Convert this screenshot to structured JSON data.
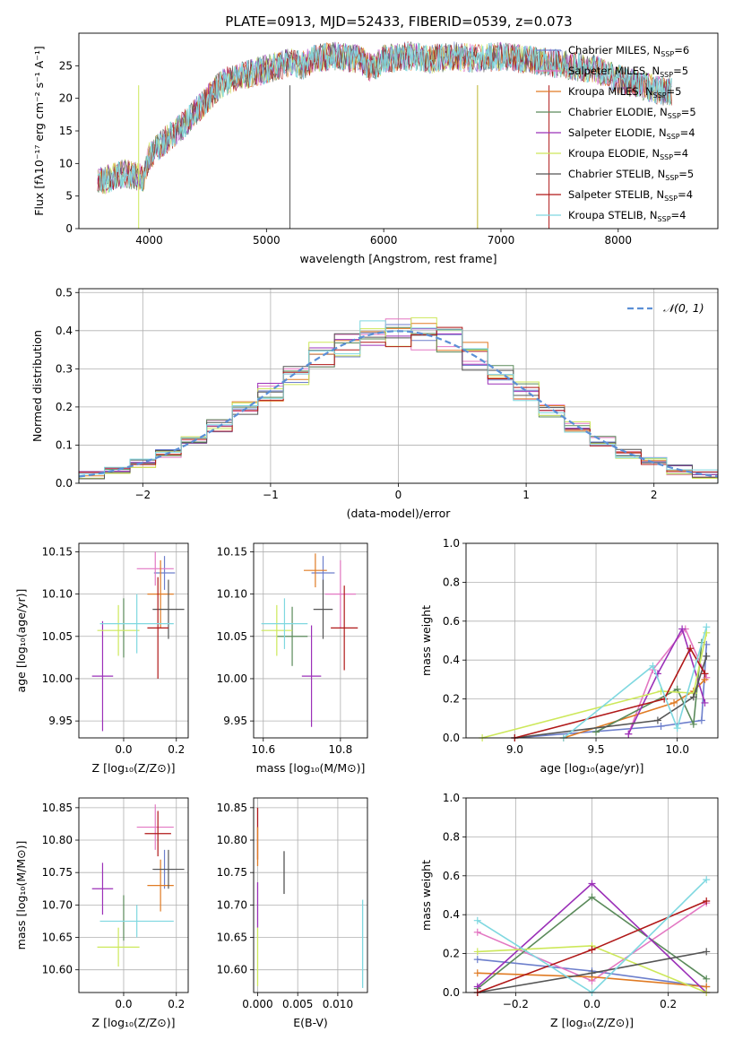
{
  "chart_data": [
    {
      "type": "line",
      "panel": "spectrum",
      "title": "PLATE=0913, MJD=52433, FIBERID=0539, z=0.073",
      "xlabel": "wavelength [Angstrom, rest frame]",
      "ylabel": "Flux [fλ10⁻¹⁷ erg cm⁻² s⁻¹ A⁻¹]",
      "xlim": [
        3400,
        8850
      ],
      "ylim": [
        0,
        30
      ],
      "xticks": [
        4000,
        5000,
        6000,
        7000,
        8000
      ],
      "yticks": [
        0,
        5,
        10,
        15,
        20,
        25
      ],
      "grid": false,
      "legend_position": "top-right",
      "continuum": {
        "x": [
          3550,
          3700,
          3800,
          3900,
          3950,
          4000,
          4100,
          4200,
          4300,
          4400,
          4500,
          4600,
          4700,
          4800,
          4900,
          5000,
          5100,
          5200,
          5300,
          5400,
          5600,
          5800,
          5900,
          6000,
          6200,
          6400,
          6600,
          6800,
          7000,
          7200,
          7400,
          7600,
          7800,
          8000,
          8200,
          8400
        ],
        "y": [
          7,
          8,
          8.5,
          8,
          7.5,
          11,
          13,
          14.5,
          16,
          18,
          20,
          22,
          23,
          23.5,
          24,
          24.5,
          25,
          25.5,
          25,
          26,
          26.5,
          26,
          24.5,
          26,
          26.5,
          26,
          26.5,
          26,
          26.5,
          26,
          25.5,
          25,
          24.5,
          23,
          22,
          21
        ]
      },
      "series": [
        {
          "name": "Chabrier MILES, N_SSP=6",
          "label_prefix": "Chabrier MILES, N",
          "label_sub": "SSP",
          "label_suffix": "=6",
          "color": "#6d7fcc"
        },
        {
          "name": "Salpeter MILES, N_SSP=5",
          "label_prefix": "Salpeter MILES, N",
          "label_sub": "SSP",
          "label_suffix": "=5",
          "color": "#e377c2"
        },
        {
          "name": "Kroupa MILES, N_SSP=5",
          "label_prefix": "Kroupa MILES, N",
          "label_sub": "SSP",
          "label_suffix": "=5",
          "color": "#e07b24"
        },
        {
          "name": "Chabrier ELODIE, N_SSP=5",
          "label_prefix": "Chabrier ELODIE, N",
          "label_sub": "SSP",
          "label_suffix": "=5",
          "color": "#5a8a5a"
        },
        {
          "name": "Salpeter ELODIE, N_SSP=4",
          "label_prefix": "Salpeter ELODIE, N",
          "label_sub": "SSP",
          "label_suffix": "=4",
          "color": "#9b30b8"
        },
        {
          "name": "Kroupa ELODIE, N_SSP=4",
          "label_prefix": "Kroupa ELODIE, N",
          "label_sub": "SSP",
          "label_suffix": "=4",
          "color": "#cde85a"
        },
        {
          "name": "Chabrier STELIB, N_SSP=5",
          "label_prefix": "Chabrier STELIB, N",
          "label_sub": "SSP",
          "label_suffix": "=5",
          "color": "#555555"
        },
        {
          "name": "Salpeter STELIB, N_SSP=4",
          "label_prefix": "Salpeter STELIB, N",
          "label_sub": "SSP",
          "label_suffix": "=4",
          "color": "#b01818"
        },
        {
          "name": "Kroupa STELIB, N_SSP=4",
          "label_prefix": "Kroupa STELIB, N",
          "label_sub": "SSP",
          "label_suffix": "=4",
          "color": "#7fd8e0"
        }
      ]
    },
    {
      "type": "line",
      "panel": "residuals",
      "xlabel": "(data-model)/error",
      "ylabel": "Normed distribution",
      "xlim": [
        -2.5,
        2.5
      ],
      "ylim": [
        0,
        0.51
      ],
      "xticks": [
        -2,
        -1,
        0,
        1,
        2
      ],
      "yticks": [
        0.0,
        0.1,
        0.2,
        0.3,
        0.4,
        0.5
      ],
      "grid": true,
      "legend_position": "top-right",
      "reference_curve": {
        "name": "N(0,1)",
        "label": "𝒩(0, 1)",
        "mean": 0,
        "sigma": 1,
        "color": "#5b8fd6",
        "style": "dashed"
      },
      "histogram_bins": [
        -2.5,
        -2.3,
        -2.1,
        -1.9,
        -1.7,
        -1.5,
        -1.3,
        -1.1,
        -0.9,
        -0.7,
        -0.5,
        -0.3,
        -0.1,
        0.1,
        0.3,
        0.5,
        0.7,
        0.9,
        1.1,
        1.3,
        1.5,
        1.7,
        1.9,
        2.1,
        2.3,
        2.5
      ]
    },
    {
      "type": "scatter",
      "panel": "age-vs-Z",
      "xlabel": "Z [log₁₀(Z/Z⊙)]",
      "ylabel": "age  [log₁₀(age/yr)]",
      "xlim": [
        -0.17,
        0.245
      ],
      "ylim": [
        9.93,
        10.16
      ],
      "xticks": [
        0.0,
        0.2
      ],
      "yticks": [
        9.95,
        10.0,
        10.05,
        10.1,
        10.15
      ],
      "grid": true,
      "points": [
        {
          "x": 0.155,
          "y": 10.125,
          "xerr": 0.04,
          "yerr": 0.02
        },
        {
          "x": 0.12,
          "y": 10.13,
          "xerr": 0.07,
          "yerr": 0.02
        },
        {
          "x": 0.14,
          "y": 10.1,
          "xerr": 0.05,
          "yerr": 0.04
        },
        {
          "x": 0.0,
          "y": 10.06,
          "xerr": 0.0,
          "yerr": 0.035
        },
        {
          "x": -0.08,
          "y": 10.003,
          "xerr": 0.04,
          "yerr": 0.065
        },
        {
          "x": -0.02,
          "y": 10.057,
          "xerr": 0.08,
          "yerr": 0.03
        },
        {
          "x": 0.17,
          "y": 10.082,
          "xerr": 0.06,
          "yerr": 0.035
        },
        {
          "x": 0.13,
          "y": 10.06,
          "xerr": 0.04,
          "yerr": 0.06
        },
        {
          "x": 0.05,
          "y": 10.065,
          "xerr": 0.14,
          "yerr": 0.035
        }
      ]
    },
    {
      "type": "scatter",
      "panel": "age-vs-mass",
      "xlabel": "mass [log₁₀(M/M⊙)]",
      "ylabel": "",
      "xlim": [
        10.575,
        10.87
      ],
      "ylim": [
        9.93,
        10.16
      ],
      "xticks": [
        10.6,
        10.8
      ],
      "yticks": [
        9.95,
        10.0,
        10.05,
        10.1,
        10.15
      ],
      "grid": true,
      "points": [
        {
          "x": 10.755,
          "y": 10.125,
          "xerr": 0.03,
          "yerr": 0.02
        },
        {
          "x": 10.8,
          "y": 10.1,
          "xerr": 0.04,
          "yerr": 0.04
        },
        {
          "x": 10.735,
          "y": 10.128,
          "xerr": 0.03,
          "yerr": 0.02
        },
        {
          "x": 10.675,
          "y": 10.05,
          "xerr": 0.04,
          "yerr": 0.035
        },
        {
          "x": 10.725,
          "y": 10.003,
          "xerr": 0.025,
          "yerr": 0.06
        },
        {
          "x": 10.635,
          "y": 10.057,
          "xerr": 0.04,
          "yerr": 0.03
        },
        {
          "x": 10.755,
          "y": 10.082,
          "xerr": 0.025,
          "yerr": 0.035
        },
        {
          "x": 10.81,
          "y": 10.06,
          "xerr": 0.035,
          "yerr": 0.05
        },
        {
          "x": 10.655,
          "y": 10.065,
          "xerr": 0.06,
          "yerr": 0.03
        }
      ]
    },
    {
      "type": "line",
      "panel": "mass-weight-vs-age",
      "xlabel": "age  [log₁₀(age/yr)]",
      "ylabel": "mass weight",
      "xlim": [
        8.7,
        10.25
      ],
      "ylim": [
        0,
        1.0
      ],
      "xticks": [
        9.0,
        9.5,
        10.0
      ],
      "yticks": [
        0.0,
        0.2,
        0.4,
        0.6,
        0.8,
        1.0
      ],
      "grid": true,
      "series": [
        {
          "x": [
            9.0,
            9.9,
            10.15,
            10.18
          ],
          "y": [
            0.0,
            0.06,
            0.09,
            0.48
          ]
        },
        {
          "x": [
            9.7,
            9.85,
            10.05,
            10.18
          ],
          "y": [
            0.02,
            0.35,
            0.56,
            0.31
          ]
        },
        {
          "x": [
            9.3,
            9.98,
            10.1,
            10.17
          ],
          "y": [
            0.0,
            0.18,
            0.24,
            0.3
          ]
        },
        {
          "x": [
            9.5,
            10.0,
            10.1,
            10.15
          ],
          "y": [
            0.03,
            0.25,
            0.07,
            0.49
          ]
        },
        {
          "x": [
            9.7,
            9.88,
            10.03,
            10.17
          ],
          "y": [
            0.02,
            0.33,
            0.56,
            0.18
          ]
        },
        {
          "x": [
            8.8,
            9.9,
            10.1,
            10.18
          ],
          "y": [
            0.0,
            0.24,
            0.23,
            0.54
          ]
        },
        {
          "x": [
            9.0,
            9.88,
            10.1,
            10.18
          ],
          "y": [
            0.0,
            0.09,
            0.21,
            0.42
          ]
        },
        {
          "x": [
            9.0,
            9.92,
            10.08,
            10.17
          ],
          "y": [
            0.0,
            0.2,
            0.46,
            0.33
          ]
        },
        {
          "x": [
            9.3,
            9.85,
            10.0,
            10.18
          ],
          "y": [
            0.0,
            0.37,
            0.05,
            0.57
          ]
        }
      ]
    },
    {
      "type": "scatter",
      "panel": "mass-vs-Z",
      "xlabel": "Z [log₁₀(Z/Z⊙)]",
      "ylabel": "mass [log₁₀(M/M⊙)]",
      "xlim": [
        -0.17,
        0.245
      ],
      "ylim": [
        10.565,
        10.865
      ],
      "xticks": [
        0.0,
        0.2
      ],
      "yticks": [
        10.6,
        10.65,
        10.7,
        10.75,
        10.8,
        10.85
      ],
      "grid": true,
      "points": [
        {
          "x": 0.155,
          "y": 10.755,
          "xerr": 0.04,
          "yerr": 0.03
        },
        {
          "x": 0.12,
          "y": 10.82,
          "xerr": 0.07,
          "yerr": 0.035
        },
        {
          "x": 0.14,
          "y": 10.73,
          "xerr": 0.05,
          "yerr": 0.04
        },
        {
          "x": 0.0,
          "y": 10.68,
          "xerr": 0.0,
          "yerr": 0.035
        },
        {
          "x": -0.08,
          "y": 10.725,
          "xerr": 0.04,
          "yerr": 0.04
        },
        {
          "x": -0.02,
          "y": 10.635,
          "xerr": 0.08,
          "yerr": 0.03
        },
        {
          "x": 0.17,
          "y": 10.755,
          "xerr": 0.06,
          "yerr": 0.03
        },
        {
          "x": 0.13,
          "y": 10.81,
          "xerr": 0.05,
          "yerr": 0.035
        },
        {
          "x": 0.05,
          "y": 10.675,
          "xerr": 0.14,
          "yerr": 0.025
        }
      ]
    },
    {
      "type": "scatter",
      "panel": "mass-vs-EBV",
      "xlabel": "E(B-V)",
      "ylabel": "",
      "xlim": [
        -0.0005,
        0.0137
      ],
      "ylim": [
        10.565,
        10.865
      ],
      "xticks": [
        0.0,
        0.005,
        0.01
      ],
      "yticks": [
        10.6,
        10.65,
        10.7,
        10.75,
        10.8,
        10.85
      ],
      "grid": true,
      "points": [
        {
          "x": 0.0,
          "y": 10.81,
          "xerr": 0.0,
          "yerr": 0.04
        },
        {
          "x": 0.0,
          "y": 10.7,
          "xerr": 0.0,
          "yerr": 0.035
        },
        {
          "x": 0.0,
          "y": 10.62,
          "xerr": 0.0,
          "yerr": 0.045
        },
        {
          "x": 0.0,
          "y": 10.79,
          "xerr": 0.0,
          "yerr": 0.03
        },
        {
          "x": 0.0033,
          "y": 10.75,
          "xerr": 0.0,
          "yerr": 0.033
        },
        {
          "x": 0.0131,
          "y": 10.64,
          "xerr": 0.0,
          "yerr": 0.068
        }
      ]
    },
    {
      "type": "line",
      "panel": "mass-weight-vs-Z",
      "xlabel": "Z [log₁₀(Z/Z⊙)]",
      "ylabel": "mass weight",
      "xlim": [
        -0.33,
        0.33
      ],
      "ylim": [
        0,
        1.0
      ],
      "xticks": [
        -0.2,
        0.0,
        0.2
      ],
      "yticks": [
        0.0,
        0.2,
        0.4,
        0.6,
        0.8,
        1.0
      ],
      "grid": true,
      "series": [
        {
          "x": [
            -0.3,
            0.0,
            0.3
          ],
          "y": [
            0.17,
            0.11,
            0.03
          ]
        },
        {
          "x": [
            -0.3,
            0.0,
            0.3
          ],
          "y": [
            0.31,
            0.06,
            0.46
          ]
        },
        {
          "x": [
            -0.3,
            0.0,
            0.3
          ],
          "y": [
            0.1,
            0.08,
            0.03
          ]
        },
        {
          "x": [
            -0.3,
            0.0,
            0.3
          ],
          "y": [
            0.02,
            0.49,
            0.07
          ]
        },
        {
          "x": [
            -0.3,
            0.0,
            0.3
          ],
          "y": [
            0.03,
            0.56,
            0.0
          ]
        },
        {
          "x": [
            -0.3,
            0.0,
            0.3
          ],
          "y": [
            0.21,
            0.24,
            0.0
          ]
        },
        {
          "x": [
            -0.3,
            0.0,
            0.3
          ],
          "y": [
            0.0,
            0.1,
            0.21
          ]
        },
        {
          "x": [
            -0.3,
            0.0,
            0.3
          ],
          "y": [
            0.0,
            0.22,
            0.47
          ]
        },
        {
          "x": [
            -0.3,
            0.0,
            0.3
          ],
          "y": [
            0.37,
            0.0,
            0.58
          ]
        }
      ]
    }
  ]
}
